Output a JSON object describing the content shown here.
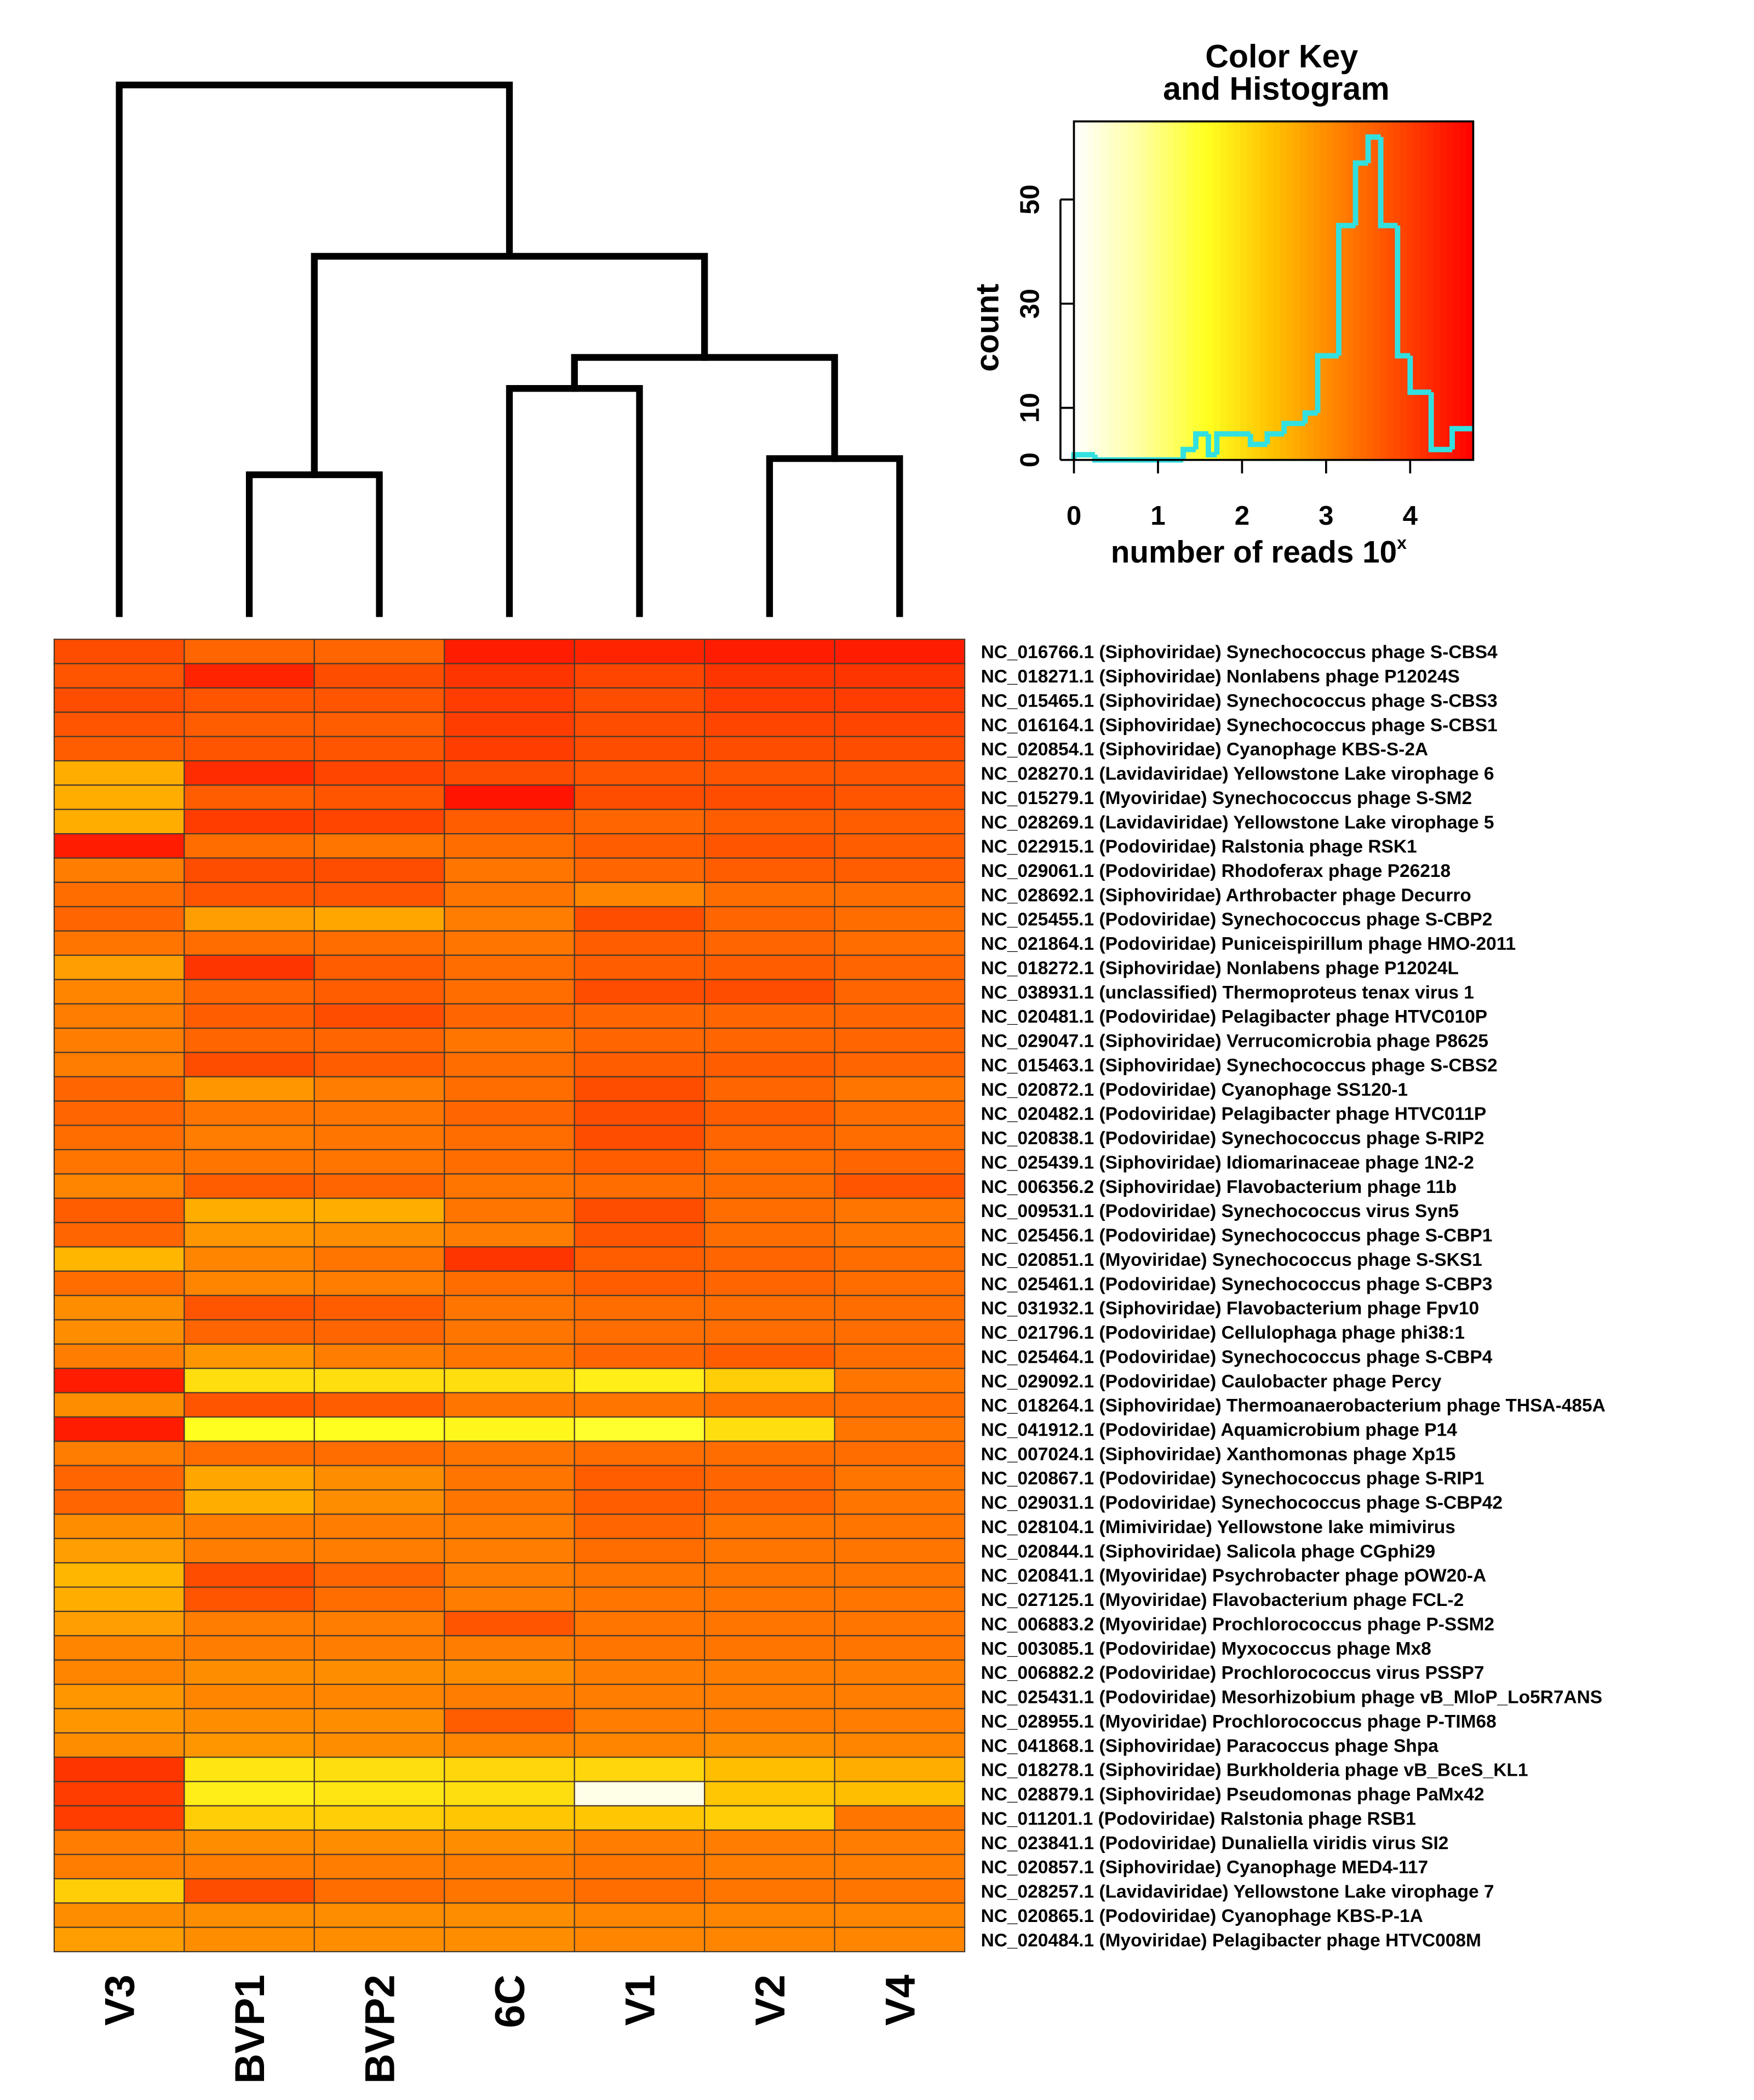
{
  "chart_data": {
    "type": "heatmap",
    "columns": [
      "V3",
      "BVP1",
      "BVP2",
      "6C",
      "V1",
      "V2",
      "V4"
    ],
    "rows": [
      "NC_016766.1 (Siphoviridae) Synechococcus phage S-CBS4",
      "NC_018271.1 (Siphoviridae) Nonlabens phage P12024S",
      "NC_015465.1 (Siphoviridae) Synechococcus phage S-CBS3",
      "NC_016164.1 (Siphoviridae) Synechococcus phage S-CBS1",
      "NC_020854.1 (Siphoviridae) Cyanophage KBS-S-2A",
      "NC_028270.1 (Lavidaviridae) Yellowstone Lake virophage 6",
      "NC_015279.1 (Myoviridae) Synechococcus phage S-SM2",
      "NC_028269.1 (Lavidaviridae) Yellowstone Lake virophage 5",
      "NC_022915.1 (Podoviridae) Ralstonia phage RSK1",
      "NC_029061.1 (Podoviridae) Rhodoferax phage P26218",
      "NC_028692.1 (Siphoviridae) Arthrobacter phage Decurro",
      "NC_025455.1 (Podoviridae) Synechococcus phage S-CBP2",
      "NC_021864.1 (Podoviridae) Puniceispirillum phage HMO-2011",
      "NC_018272.1 (Siphoviridae) Nonlabens phage P12024L",
      "NC_038931.1 (unclassified) Thermoproteus tenax virus 1",
      "NC_020481.1 (Podoviridae) Pelagibacter phage HTVC010P",
      "NC_029047.1 (Siphoviridae) Verrucomicrobia phage P8625",
      "NC_015463.1 (Siphoviridae) Synechococcus phage S-CBS2",
      "NC_020872.1 (Podoviridae) Cyanophage SS120-1",
      "NC_020482.1 (Podoviridae) Pelagibacter phage HTVC011P",
      "NC_020838.1 (Podoviridae) Synechococcus phage S-RIP2",
      "NC_025439.1 (Siphoviridae) Idiomarinaceae phage 1N2-2",
      "NC_006356.2 (Siphoviridae) Flavobacterium phage 11b",
      "NC_009531.1 (Podoviridae) Synechococcus virus Syn5",
      "NC_025456.1 (Podoviridae) Synechococcus phage S-CBP1",
      "NC_020851.1 (Myoviridae) Synechococcus phage S-SKS1",
      "NC_025461.1 (Podoviridae) Synechococcus phage S-CBP3",
      "NC_031932.1 (Siphoviridae) Flavobacterium phage Fpv10",
      "NC_021796.1 (Podoviridae) Cellulophaga phage phi38:1",
      "NC_025464.1 (Podoviridae) Synechococcus phage S-CBP4",
      "NC_029092.1 (Podoviridae) Caulobacter phage Percy",
      "NC_018264.1 (Siphoviridae) Thermoanaerobacterium phage THSA-485A",
      "NC_041912.1 (Podoviridae) Aquamicrobium phage P14",
      "NC_007024.1 (Siphoviridae) Xanthomonas phage Xp15",
      "NC_020867.1 (Podoviridae) Synechococcus phage S-RIP1",
      "NC_029031.1 (Podoviridae) Synechococcus phage S-CBP42",
      "NC_028104.1 (Mimiviridae) Yellowstone lake mimivirus",
      "NC_020844.1 (Siphoviridae) Salicola phage CGphi29",
      "NC_020841.1 (Myoviridae) Psychrobacter phage pOW20-A",
      "NC_027125.1 (Myoviridae) Flavobacterium phage FCL-2",
      "NC_006883.2 (Myoviridae) Prochlorococcus phage P-SSM2",
      "NC_003085.1 (Podoviridae) Myxococcus phage Mx8",
      "NC_006882.2 (Podoviridae) Prochlorococcus virus PSSP7",
      "NC_025431.1 (Podoviridae) Mesorhizobium phage vB_MloP_Lo5R7ANS",
      "NC_028955.1 (Myoviridae) Prochlorococcus phage P-TIM68",
      "NC_041868.1 (Siphoviridae) Paracoccus phage Shpa",
      "NC_018278.1 (Siphoviridae) Burkholderia phage vB_BceS_KL1",
      "NC_028879.1 (Siphoviridae) Pseudomonas phage PaMx42",
      "NC_011201.1 (Podoviridae) Ralstonia phage RSB1",
      "NC_023841.1 (Podoviridae) Dunaliella viridis virus SI2",
      "NC_020857.1 (Siphoviridae) Cyanophage MED4-117",
      "NC_028257.1 (Lavidaviridae) Yellowstone Lake virophage 7",
      "NC_020865.1 (Podoviridae) Cyanophage KBS-P-1A",
      "NC_020484.1 (Myoviridae) Pelagibacter phage HTVC008M"
    ],
    "values": [
      [
        3.8,
        3.5,
        3.5,
        4.4,
        4.3,
        4.4,
        4.4
      ],
      [
        3.7,
        4.3,
        3.8,
        4.1,
        3.9,
        4.1,
        4.1
      ],
      [
        3.8,
        3.7,
        3.7,
        4.0,
        3.8,
        4.0,
        4.0
      ],
      [
        3.7,
        3.6,
        3.6,
        4.0,
        3.8,
        3.9,
        3.9
      ],
      [
        3.6,
        3.7,
        3.7,
        4.0,
        3.8,
        3.8,
        3.8
      ],
      [
        2.6,
        4.2,
        3.9,
        3.8,
        3.7,
        3.7,
        3.7
      ],
      [
        2.6,
        3.6,
        3.7,
        4.5,
        3.8,
        3.8,
        3.7
      ],
      [
        2.6,
        4.0,
        3.9,
        3.6,
        3.5,
        3.6,
        3.6
      ],
      [
        4.4,
        3.4,
        3.3,
        3.4,
        3.6,
        3.7,
        3.6
      ],
      [
        3.2,
        3.8,
        3.8,
        3.3,
        3.5,
        3.6,
        3.6
      ],
      [
        3.4,
        3.7,
        3.7,
        3.3,
        3.1,
        3.4,
        3.4
      ],
      [
        3.5,
        2.8,
        2.7,
        3.2,
        3.8,
        3.5,
        3.4
      ],
      [
        3.3,
        3.4,
        3.4,
        3.3,
        3.6,
        3.5,
        3.4
      ],
      [
        2.8,
        4.1,
        3.6,
        3.4,
        3.6,
        3.6,
        3.5
      ],
      [
        3.1,
        3.5,
        3.6,
        3.4,
        3.8,
        3.8,
        3.5
      ],
      [
        3.2,
        3.6,
        3.8,
        3.5,
        3.5,
        3.5,
        3.5
      ],
      [
        3.2,
        3.5,
        3.5,
        3.3,
        3.5,
        3.5,
        3.5
      ],
      [
        3.2,
        3.8,
        3.6,
        3.4,
        3.6,
        3.6,
        3.5
      ],
      [
        3.5,
        2.9,
        3.2,
        3.4,
        3.8,
        3.5,
        3.3
      ],
      [
        3.5,
        3.3,
        3.3,
        3.5,
        3.8,
        3.6,
        3.4
      ],
      [
        3.4,
        3.2,
        3.3,
        3.4,
        3.8,
        3.5,
        3.4
      ],
      [
        3.3,
        3.3,
        3.3,
        3.4,
        3.6,
        3.4,
        3.5
      ],
      [
        3.1,
        3.6,
        3.5,
        3.3,
        3.4,
        3.4,
        3.7
      ],
      [
        3.6,
        2.6,
        2.6,
        3.3,
        3.8,
        3.4,
        3.3
      ],
      [
        3.5,
        2.9,
        3.0,
        3.2,
        3.7,
        3.4,
        3.3
      ],
      [
        2.5,
        3.1,
        3.3,
        4.1,
        3.6,
        3.5,
        3.4
      ],
      [
        3.4,
        3.1,
        3.2,
        3.4,
        3.6,
        3.5,
        3.4
      ],
      [
        3.0,
        3.7,
        3.6,
        3.3,
        3.4,
        3.4,
        3.4
      ],
      [
        3.0,
        3.5,
        3.5,
        3.3,
        3.4,
        3.4,
        3.4
      ],
      [
        3.2,
        2.9,
        3.2,
        3.3,
        3.5,
        3.6,
        3.4
      ],
      [
        4.4,
        2.0,
        2.0,
        2.0,
        1.8,
        2.2,
        3.3
      ],
      [
        3.0,
        3.7,
        3.6,
        3.3,
        3.3,
        3.4,
        3.4
      ],
      [
        4.4,
        1.6,
        1.6,
        1.7,
        1.5,
        2.0,
        3.3
      ],
      [
        3.2,
        3.4,
        3.4,
        3.3,
        3.4,
        3.4,
        3.4
      ],
      [
        3.5,
        2.7,
        3.0,
        3.3,
        3.6,
        3.5,
        3.3
      ],
      [
        3.5,
        2.6,
        3.0,
        3.3,
        3.6,
        3.5,
        3.3
      ],
      [
        3.0,
        3.2,
        3.2,
        3.2,
        3.5,
        3.3,
        3.3
      ],
      [
        2.8,
        3.2,
        3.2,
        3.2,
        3.4,
        3.3,
        3.3
      ],
      [
        2.5,
        3.8,
        3.5,
        3.2,
        3.3,
        3.3,
        3.3
      ],
      [
        2.6,
        3.7,
        3.4,
        3.2,
        3.3,
        3.3,
        3.3
      ],
      [
        2.8,
        3.2,
        3.2,
        3.7,
        3.3,
        3.3,
        3.3
      ],
      [
        3.1,
        3.2,
        3.2,
        3.2,
        3.3,
        3.3,
        3.3
      ],
      [
        3.1,
        3.0,
        3.0,
        3.0,
        3.2,
        3.2,
        3.2
      ],
      [
        2.9,
        3.1,
        3.1,
        3.2,
        3.2,
        3.2,
        3.2
      ],
      [
        2.9,
        3.0,
        3.0,
        3.6,
        3.2,
        3.2,
        3.2
      ],
      [
        3.0,
        2.9,
        3.0,
        3.1,
        3.1,
        3.0,
        3.1
      ],
      [
        4.1,
        1.9,
        2.0,
        2.1,
        2.1,
        2.4,
        2.6
      ],
      [
        4.0,
        1.8,
        1.9,
        2.0,
        0.2,
        2.3,
        2.4
      ],
      [
        4.0,
        2.2,
        2.2,
        2.3,
        2.3,
        2.2,
        3.3
      ],
      [
        3.2,
        3.0,
        3.0,
        3.0,
        3.2,
        3.2,
        3.2
      ],
      [
        3.2,
        3.2,
        3.2,
        3.2,
        3.3,
        3.2,
        3.2
      ],
      [
        2.2,
        3.8,
        3.4,
        3.3,
        3.4,
        3.3,
        3.3
      ],
      [
        3.0,
        3.0,
        3.0,
        3.0,
        3.1,
        3.1,
        3.1
      ],
      [
        2.8,
        3.0,
        3.0,
        3.0,
        3.1,
        3.1,
        3.1
      ]
    ],
    "colors": [
      "#ffffff",
      "#ffffa0",
      "#ffff20",
      "#ffc000",
      "#ff8000",
      "#ff4000",
      "#ff0000"
    ],
    "dendrogram": {
      "merge": [
        [
          -2,
          -3
        ],
        [
          -6,
          -7
        ],
        [
          -4,
          -5
        ],
        [
          3,
          2
        ],
        [
          1,
          4
        ],
        [
          -1,
          5
        ]
      ],
      "height": [
        1.03,
        1.15,
        1.67,
        1.9,
        2.65,
        3.92
      ]
    },
    "color_key": {
      "title": [
        "Color Key",
        "and Histogram"
      ],
      "xlabel": "number of reads 10",
      "xlabel_superscript": "x",
      "ylabel": "count",
      "xlim": [
        0,
        4.75
      ],
      "ylim": [
        0,
        65
      ],
      "xticks": [
        0,
        1,
        2,
        3,
        4
      ],
      "yticks": [
        0,
        10,
        30,
        50
      ],
      "histogram": {
        "color": "#33e0e0",
        "bins": [
          0,
          0.25,
          1.3,
          1.45,
          1.6,
          1.7,
          2.1,
          2.3,
          2.5,
          2.75,
          2.9,
          3.15,
          3.35,
          3.5,
          3.65,
          3.85,
          4.0,
          4.25,
          4.5,
          4.75
        ],
        "counts": [
          1,
          0,
          2,
          5,
          1,
          5,
          3,
          5,
          7,
          9,
          20,
          45,
          57,
          62,
          45,
          20,
          13,
          2,
          6
        ]
      }
    }
  }
}
